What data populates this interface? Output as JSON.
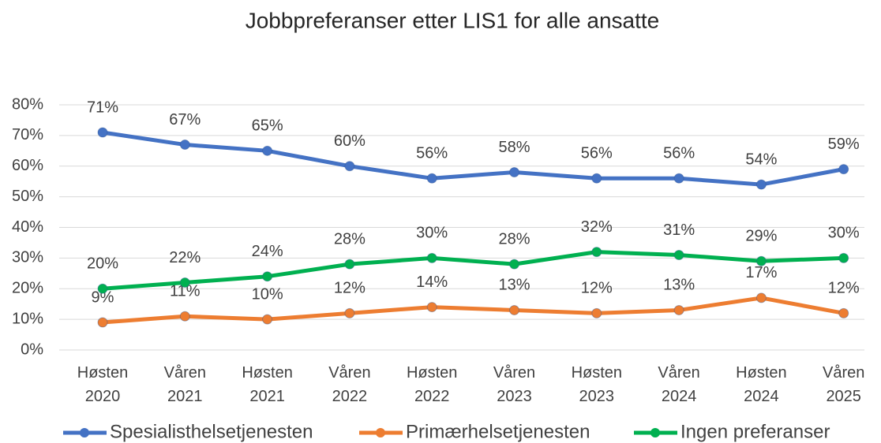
{
  "chart_data": {
    "type": "line",
    "title": "Jobbpreferanser etter LIS1 for alle ansatte",
    "categories": [
      "Høsten 2020",
      "Våren 2021",
      "Høsten 2021",
      "Våren 2022",
      "Høsten 2022",
      "Våren 2023",
      "Høsten 2023",
      "Våren 2024",
      "Høsten 2024",
      "Våren 2025"
    ],
    "series": [
      {
        "name": "Spesialisthelsetjenesten",
        "color": "#4472c4",
        "values": [
          71,
          67,
          65,
          60,
          56,
          58,
          56,
          56,
          54,
          59
        ],
        "value_labels": [
          "71%",
          "67%",
          "65%",
          "60%",
          "56%",
          "58%",
          "56%",
          "56%",
          "54%",
          "59%"
        ]
      },
      {
        "name": "Primærhelsetjenesten",
        "color": "#ed7d31",
        "values": [
          9,
          11,
          10,
          12,
          14,
          13,
          12,
          13,
          17,
          12
        ],
        "value_labels": [
          "9%",
          "11%",
          "10%",
          "12%",
          "14%",
          "13%",
          "12%",
          "13%",
          "17%",
          "12%"
        ]
      },
      {
        "name": "Ingen preferanser",
        "color": "#00b050",
        "values": [
          20,
          22,
          24,
          28,
          30,
          28,
          32,
          31,
          29,
          30
        ],
        "value_labels": [
          "20%",
          "22%",
          "24%",
          "28%",
          "30%",
          "28%",
          "32%",
          "31%",
          "29%",
          "30%"
        ]
      }
    ],
    "ylim": [
      0,
      80
    ],
    "yticks": [
      {
        "value": 0,
        "label": "0%"
      },
      {
        "value": 10,
        "label": "10%"
      },
      {
        "value": 20,
        "label": "20%"
      },
      {
        "value": 30,
        "label": "30%"
      },
      {
        "value": 40,
        "label": "40%"
      },
      {
        "value": 50,
        "label": "50%"
      },
      {
        "value": 60,
        "label": "60%"
      },
      {
        "value": 70,
        "label": "70%"
      },
      {
        "value": 80,
        "label": "80%"
      }
    ],
    "grid": true,
    "legend": "bottom"
  }
}
